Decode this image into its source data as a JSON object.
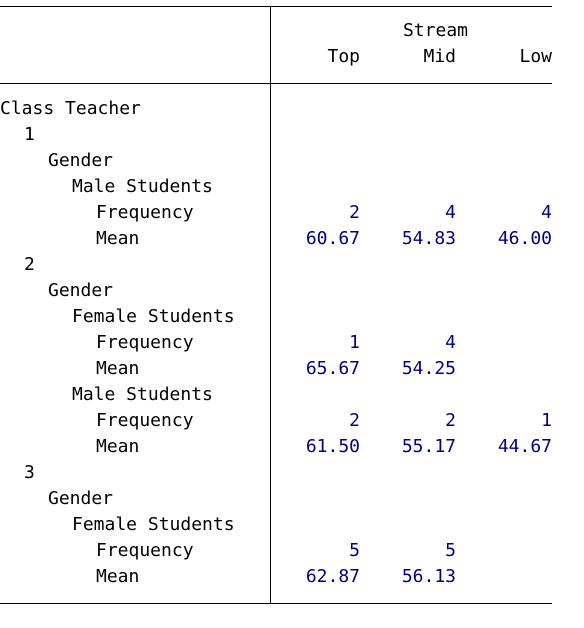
{
  "header": {
    "group_label": "Stream",
    "columns": [
      "Top",
      "Mid",
      "Low"
    ]
  },
  "rows": [
    {
      "label": "Class Teacher",
      "indent": 0,
      "values": [
        "",
        "",
        ""
      ]
    },
    {
      "label": "1",
      "indent": 1,
      "values": [
        "",
        "",
        ""
      ]
    },
    {
      "label": "Gender",
      "indent": 2,
      "values": [
        "",
        "",
        ""
      ]
    },
    {
      "label": "Male Students",
      "indent": 3,
      "values": [
        "",
        "",
        ""
      ]
    },
    {
      "label": "Frequency",
      "indent": 4,
      "values": [
        "2",
        "4",
        "4"
      ]
    },
    {
      "label": "Mean",
      "indent": 4,
      "values": [
        "60.67",
        "54.83",
        "46.00"
      ]
    },
    {
      "label": "2",
      "indent": 1,
      "values": [
        "",
        "",
        ""
      ]
    },
    {
      "label": "Gender",
      "indent": 2,
      "values": [
        "",
        "",
        ""
      ]
    },
    {
      "label": "Female Students",
      "indent": 3,
      "values": [
        "",
        "",
        ""
      ]
    },
    {
      "label": "Frequency",
      "indent": 4,
      "values": [
        "1",
        "4",
        ""
      ]
    },
    {
      "label": "Mean",
      "indent": 4,
      "values": [
        "65.67",
        "54.25",
        ""
      ]
    },
    {
      "label": "Male Students",
      "indent": 3,
      "values": [
        "",
        "",
        ""
      ]
    },
    {
      "label": "Frequency",
      "indent": 4,
      "values": [
        "2",
        "2",
        "1"
      ]
    },
    {
      "label": "Mean",
      "indent": 4,
      "values": [
        "61.50",
        "55.17",
        "44.67"
      ]
    },
    {
      "label": "3",
      "indent": 1,
      "values": [
        "",
        "",
        ""
      ]
    },
    {
      "label": "Gender",
      "indent": 2,
      "values": [
        "",
        "",
        ""
      ]
    },
    {
      "label": "Female Students",
      "indent": 3,
      "values": [
        "",
        "",
        ""
      ]
    },
    {
      "label": "Frequency",
      "indent": 4,
      "values": [
        "5",
        "5",
        ""
      ]
    },
    {
      "label": "Mean",
      "indent": 4,
      "values": [
        "62.87",
        "56.13",
        ""
      ]
    }
  ]
}
